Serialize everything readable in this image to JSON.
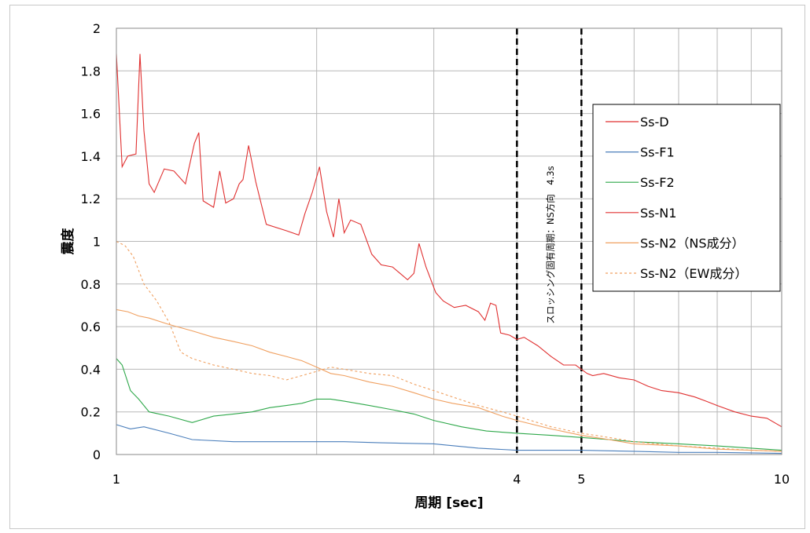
{
  "chart_data": {
    "type": "line",
    "xscale": "log",
    "xlim": [
      1,
      10
    ],
    "ylim": [
      0,
      2
    ],
    "grid": true,
    "legend_position": "right",
    "xlabel": "周期 [sec]",
    "ylabel": "震度",
    "x_ticks": [
      "1",
      "4",
      "5",
      "10"
    ],
    "y_ticks": [
      "0",
      "0.2",
      "0.4",
      "0.6",
      "0.8",
      "1",
      "1.2",
      "1.4",
      "1.6",
      "1.8",
      "2"
    ],
    "vlines": [
      4,
      5
    ],
    "annotation": "スロッシング固有周期：NS方向　4.3s",
    "series": [
      {
        "name": "Ss-D",
        "color": "#e03030",
        "dashed": false,
        "points": [
          [
            1,
            1.88
          ],
          [
            1.02,
            1.35
          ],
          [
            1.04,
            1.4
          ],
          [
            1.07,
            1.41
          ],
          [
            1.085,
            1.88
          ],
          [
            1.1,
            1.52
          ],
          [
            1.12,
            1.27
          ],
          [
            1.14,
            1.23
          ],
          [
            1.18,
            1.34
          ],
          [
            1.22,
            1.33
          ],
          [
            1.27,
            1.27
          ],
          [
            1.31,
            1.46
          ],
          [
            1.33,
            1.51
          ],
          [
            1.35,
            1.19
          ],
          [
            1.4,
            1.16
          ],
          [
            1.43,
            1.33
          ],
          [
            1.46,
            1.18
          ],
          [
            1.5,
            1.2
          ],
          [
            1.53,
            1.27
          ],
          [
            1.55,
            1.29
          ],
          [
            1.58,
            1.45
          ],
          [
            1.62,
            1.28
          ],
          [
            1.68,
            1.08
          ],
          [
            1.8,
            1.05
          ],
          [
            1.88,
            1.03
          ],
          [
            1.92,
            1.13
          ],
          [
            1.97,
            1.23
          ],
          [
            2.02,
            1.35
          ],
          [
            2.07,
            1.14
          ],
          [
            2.12,
            1.02
          ],
          [
            2.16,
            1.2
          ],
          [
            2.2,
            1.04
          ],
          [
            2.25,
            1.1
          ],
          [
            2.33,
            1.08
          ],
          [
            2.42,
            0.94
          ],
          [
            2.5,
            0.89
          ],
          [
            2.6,
            0.88
          ],
          [
            2.74,
            0.82
          ],
          [
            2.8,
            0.85
          ],
          [
            2.85,
            0.99
          ],
          [
            2.92,
            0.88
          ],
          [
            3.02,
            0.76
          ],
          [
            3.1,
            0.72
          ],
          [
            3.22,
            0.69
          ],
          [
            3.35,
            0.7
          ],
          [
            3.5,
            0.67
          ],
          [
            3.58,
            0.63
          ],
          [
            3.65,
            0.71
          ],
          [
            3.72,
            0.7
          ],
          [
            3.78,
            0.57
          ],
          [
            3.9,
            0.56
          ],
          [
            4.0,
            0.54
          ],
          [
            4.1,
            0.55
          ],
          [
            4.3,
            0.51
          ],
          [
            4.5,
            0.46
          ],
          [
            4.7,
            0.42
          ],
          [
            4.9,
            0.42
          ],
          [
            5.1,
            0.38
          ],
          [
            5.2,
            0.37
          ],
          [
            5.4,
            0.38
          ],
          [
            5.7,
            0.36
          ],
          [
            6.0,
            0.35
          ],
          [
            6.3,
            0.32
          ],
          [
            6.6,
            0.3
          ],
          [
            7.0,
            0.29
          ],
          [
            7.4,
            0.27
          ],
          [
            7.7,
            0.25
          ],
          [
            8.0,
            0.23
          ],
          [
            8.5,
            0.2
          ],
          [
            9.0,
            0.18
          ],
          [
            9.5,
            0.17
          ],
          [
            10.0,
            0.13
          ]
        ]
      },
      {
        "name": "Ss-F1",
        "color": "#4a7ebb",
        "dashed": false,
        "points": [
          [
            1,
            0.14
          ],
          [
            1.05,
            0.12
          ],
          [
            1.1,
            0.13
          ],
          [
            1.2,
            0.1
          ],
          [
            1.3,
            0.07
          ],
          [
            1.5,
            0.06
          ],
          [
            1.8,
            0.06
          ],
          [
            2.0,
            0.06
          ],
          [
            2.2,
            0.06
          ],
          [
            2.5,
            0.055
          ],
          [
            3.0,
            0.05
          ],
          [
            3.5,
            0.03
          ],
          [
            4.0,
            0.02
          ],
          [
            4.5,
            0.02
          ],
          [
            5.0,
            0.02
          ],
          [
            6.0,
            0.015
          ],
          [
            7.0,
            0.01
          ],
          [
            8.0,
            0.01
          ],
          [
            10.0,
            0.005
          ]
        ]
      },
      {
        "name": "Ss-F2",
        "color": "#2ea84a",
        "dashed": false,
        "points": [
          [
            1,
            0.45
          ],
          [
            1.02,
            0.42
          ],
          [
            1.05,
            0.3
          ],
          [
            1.08,
            0.26
          ],
          [
            1.12,
            0.2
          ],
          [
            1.2,
            0.18
          ],
          [
            1.3,
            0.15
          ],
          [
            1.4,
            0.18
          ],
          [
            1.5,
            0.19
          ],
          [
            1.6,
            0.2
          ],
          [
            1.7,
            0.22
          ],
          [
            1.8,
            0.23
          ],
          [
            1.9,
            0.24
          ],
          [
            2.0,
            0.26
          ],
          [
            2.1,
            0.26
          ],
          [
            2.2,
            0.25
          ],
          [
            2.4,
            0.23
          ],
          [
            2.6,
            0.21
          ],
          [
            2.8,
            0.19
          ],
          [
            3.0,
            0.16
          ],
          [
            3.3,
            0.13
          ],
          [
            3.6,
            0.11
          ],
          [
            4.0,
            0.1
          ],
          [
            4.5,
            0.09
          ],
          [
            5.0,
            0.08
          ],
          [
            5.5,
            0.07
          ],
          [
            6.0,
            0.06
          ],
          [
            7.0,
            0.05
          ],
          [
            8.0,
            0.04
          ],
          [
            9.0,
            0.03
          ],
          [
            10.0,
            0.02
          ]
        ]
      },
      {
        "name": "Ss-N1",
        "color": "#e03030",
        "dashed": false,
        "points": []
      },
      {
        "name": "Ss-N2（NS成分）",
        "color": "#f0a060",
        "dashed": false,
        "points": [
          [
            1,
            0.68
          ],
          [
            1.04,
            0.67
          ],
          [
            1.08,
            0.65
          ],
          [
            1.12,
            0.64
          ],
          [
            1.2,
            0.61
          ],
          [
            1.3,
            0.58
          ],
          [
            1.4,
            0.55
          ],
          [
            1.5,
            0.53
          ],
          [
            1.6,
            0.51
          ],
          [
            1.7,
            0.48
          ],
          [
            1.8,
            0.46
          ],
          [
            1.9,
            0.44
          ],
          [
            2.0,
            0.41
          ],
          [
            2.1,
            0.38
          ],
          [
            2.2,
            0.37
          ],
          [
            2.4,
            0.34
          ],
          [
            2.6,
            0.32
          ],
          [
            2.8,
            0.29
          ],
          [
            3.0,
            0.26
          ],
          [
            3.2,
            0.24
          ],
          [
            3.5,
            0.22
          ],
          [
            3.8,
            0.18
          ],
          [
            4.0,
            0.16
          ],
          [
            4.5,
            0.12
          ],
          [
            5.0,
            0.09
          ],
          [
            5.5,
            0.07
          ],
          [
            6.0,
            0.05
          ],
          [
            7.0,
            0.04
          ],
          [
            8.0,
            0.025
          ],
          [
            9.0,
            0.02
          ],
          [
            10.0,
            0.015
          ]
        ]
      },
      {
        "name": "Ss-N2（EW成分）",
        "color": "#f0a060",
        "dashed": true,
        "points": [
          [
            1,
            1.0
          ],
          [
            1.03,
            0.98
          ],
          [
            1.06,
            0.93
          ],
          [
            1.1,
            0.8
          ],
          [
            1.15,
            0.72
          ],
          [
            1.2,
            0.62
          ],
          [
            1.25,
            0.48
          ],
          [
            1.3,
            0.45
          ],
          [
            1.4,
            0.42
          ],
          [
            1.5,
            0.4
          ],
          [
            1.6,
            0.38
          ],
          [
            1.7,
            0.37
          ],
          [
            1.8,
            0.35
          ],
          [
            1.9,
            0.37
          ],
          [
            2.0,
            0.39
          ],
          [
            2.1,
            0.41
          ],
          [
            2.2,
            0.4
          ],
          [
            2.4,
            0.38
          ],
          [
            2.6,
            0.37
          ],
          [
            2.8,
            0.33
          ],
          [
            3.0,
            0.3
          ],
          [
            3.2,
            0.27
          ],
          [
            3.5,
            0.23
          ],
          [
            3.8,
            0.2
          ],
          [
            4.0,
            0.18
          ],
          [
            4.5,
            0.13
          ],
          [
            5.0,
            0.1
          ],
          [
            5.5,
            0.08
          ],
          [
            6.0,
            0.06
          ],
          [
            7.0,
            0.04
          ],
          [
            8.0,
            0.03
          ],
          [
            9.0,
            0.02
          ],
          [
            10.0,
            0.015
          ]
        ]
      }
    ]
  }
}
